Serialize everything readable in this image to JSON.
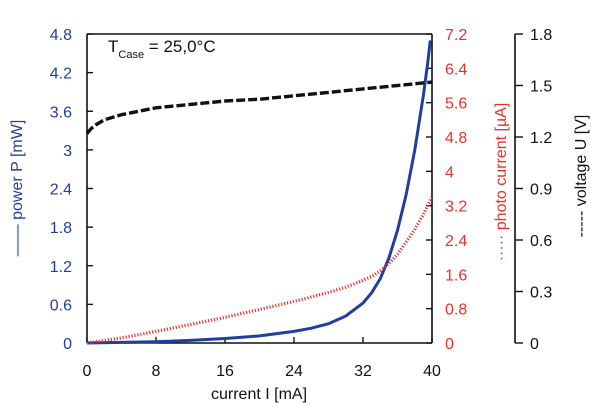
{
  "chart_data": {
    "type": "line",
    "title": "",
    "annotation": {
      "main": "T",
      "sub": "Case",
      "rest": " = 25,0°C"
    },
    "xlabel": "current I [mA]",
    "xlim": [
      0,
      40
    ],
    "xticks": [
      "0",
      "8",
      "16",
      "24",
      "32",
      "40"
    ],
    "axes": {
      "power": {
        "label": "power P [mW]",
        "legend_marker": "——",
        "color": "#1f3fa0",
        "ylim": [
          0,
          4.8
        ],
        "ticks": [
          "0",
          "0.6",
          "1.2",
          "1.8",
          "2.4",
          "3",
          "3.6",
          "4.2",
          "4.8"
        ]
      },
      "photo": {
        "label": "photo current [µA]",
        "legend_marker": "·····",
        "color": "#e8322a",
        "ylim": [
          0,
          7.2
        ],
        "ticks": [
          "0",
          "0.8",
          "1.6",
          "2.4",
          "3.2",
          "4",
          "4.8",
          "5.6",
          "6.4",
          "7.2"
        ]
      },
      "voltage": {
        "label": "voltage U [V]",
        "legend_marker": "-----",
        "color": "#111111",
        "ylim": [
          0,
          1.8
        ],
        "ticks": [
          "0",
          "0.3",
          "0.6",
          "0.9",
          "1.2",
          "1.5",
          "1.8"
        ]
      }
    },
    "series": [
      {
        "name": "power P [mW]",
        "axis": "power",
        "style": "solid",
        "x": [
          0,
          4,
          8,
          12,
          16,
          20,
          24,
          26,
          28,
          30,
          32,
          33,
          34,
          35,
          36,
          37,
          38,
          39,
          39.5,
          39.8
        ],
        "y": [
          0,
          0.01,
          0.02,
          0.04,
          0.07,
          0.11,
          0.18,
          0.23,
          0.3,
          0.42,
          0.62,
          0.78,
          1.0,
          1.32,
          1.75,
          2.3,
          3.0,
          3.85,
          4.35,
          4.7
        ]
      },
      {
        "name": "photo current [µA]",
        "axis": "photo",
        "style": "dotted",
        "x": [
          0,
          4,
          8,
          12,
          16,
          20,
          24,
          28,
          30,
          32,
          33,
          34,
          35,
          36,
          37,
          38,
          39,
          39.5,
          40
        ],
        "y": [
          0,
          0.12,
          0.27,
          0.43,
          0.6,
          0.78,
          0.97,
          1.18,
          1.3,
          1.46,
          1.55,
          1.68,
          1.85,
          2.07,
          2.35,
          2.65,
          3.0,
          3.2,
          3.4
        ]
      },
      {
        "name": "voltage U [V]",
        "axis": "voltage",
        "style": "dashed",
        "x": [
          0,
          0.5,
          1,
          2,
          4,
          8,
          12,
          16,
          20,
          24,
          28,
          32,
          36,
          40
        ],
        "y": [
          1.22,
          1.25,
          1.27,
          1.3,
          1.33,
          1.37,
          1.39,
          1.41,
          1.42,
          1.44,
          1.46,
          1.48,
          1.5,
          1.52
        ]
      }
    ]
  }
}
